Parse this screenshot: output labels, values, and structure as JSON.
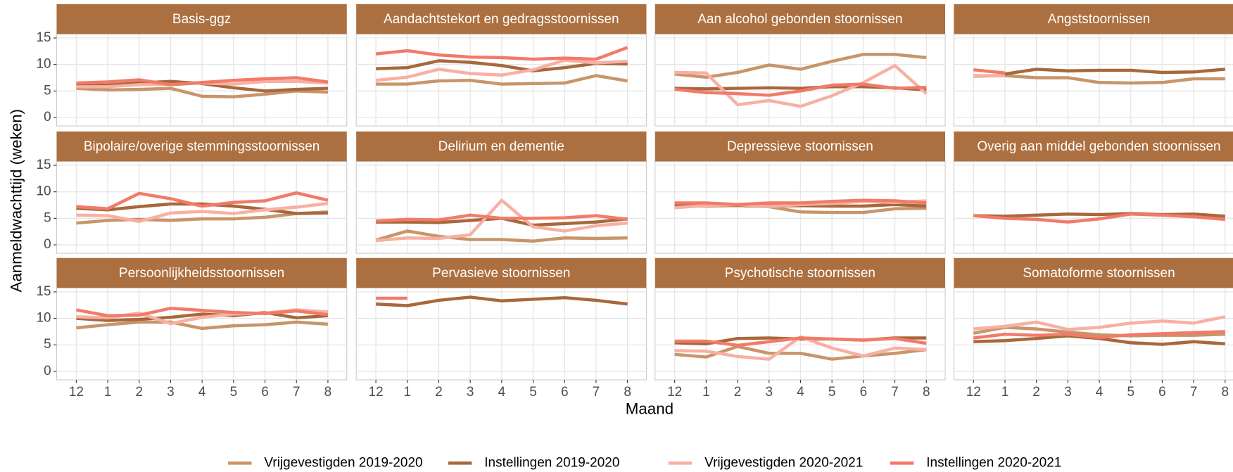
{
  "chart_data": {
    "type": "line",
    "y_label": "Aanmeldwachttijd (weken)",
    "x_label": "Maand",
    "categories": [
      "12",
      "1",
      "2",
      "3",
      "4",
      "5",
      "6",
      "7",
      "8"
    ],
    "ylim": [
      -1.6,
      15.75
    ],
    "yticks": [
      0,
      5,
      10,
      15
    ],
    "grid": true,
    "legend": "bottom",
    "series": [
      {
        "name": "Vrijgevestigden 2019-2020",
        "color": "#c8956a"
      },
      {
        "name": "Instellingen 2019-2020",
        "color": "#a7683c"
      },
      {
        "name": "Vrijgevestigden 2020-2021",
        "color": "#f8b0a3"
      },
      {
        "name": "Instellingen 2020-2021",
        "color": "#f27a69"
      }
    ],
    "panels": [
      {
        "title": "Basis-ggz",
        "series": [
          {
            "values": [
              5.5,
              5.2,
              5.3,
              5.5,
              4,
              3.9,
              4.4,
              5,
              4.8
            ]
          },
          {
            "values": [
              6,
              6.1,
              6.5,
              6.8,
              6.4,
              5.6,
              5,
              5.3,
              5.5
            ]
          },
          {
            "values": [
              5.8,
              5.8,
              6.2,
              6.2,
              6.5,
              6.3,
              6.8,
              6.8,
              6.5
            ]
          },
          {
            "values": [
              6.5,
              6.7,
              7.1,
              6.2,
              6.6,
              7,
              7.3,
              7.5,
              6.7
            ]
          }
        ]
      },
      {
        "title": "Aandachtstekort en gedragsstoornissen",
        "series": [
          {
            "values": [
              6.3,
              6.3,
              6.9,
              7,
              6.3,
              6.4,
              6.5,
              7.9,
              6.9
            ]
          },
          {
            "values": [
              9.2,
              9.4,
              10.7,
              10.4,
              9.8,
              8.8,
              9.4,
              10.2,
              10.1
            ]
          },
          {
            "values": [
              7,
              7.6,
              9.1,
              8.3,
              8,
              9,
              10.8,
              10.3,
              10.6
            ]
          },
          {
            "values": [
              12,
              12.6,
              11.8,
              11.4,
              11.3,
              11,
              11.2,
              11,
              13.2
            ]
          }
        ]
      },
      {
        "title": "Aan alcohol gebonden stoornissen",
        "series": [
          {
            "values": [
              8.2,
              7.6,
              8.5,
              9.9,
              9.1,
              10.6,
              11.9,
              11.9,
              11.3
            ]
          },
          {
            "values": [
              5.5,
              5.4,
              5.5,
              5.6,
              5.5,
              5.8,
              5.8,
              5.6,
              5.2
            ]
          },
          {
            "values": [
              8.5,
              8.4,
              2.4,
              3.2,
              2.1,
              4.1,
              6.6,
              9.8,
              4.5
            ]
          },
          {
            "values": [
              5.3,
              4.7,
              4.5,
              4.2,
              5,
              6.1,
              6.3,
              5.5,
              5.7
            ]
          }
        ]
      },
      {
        "title": "Angststoornissen",
        "series": [
          {
            "values": [
              7.8,
              7.9,
              7.5,
              7.5,
              6.6,
              6.5,
              6.6,
              7.3,
              7.3
            ]
          },
          {
            "values": [
              null,
              8.2,
              9.1,
              8.8,
              8.9,
              8.9,
              8.5,
              8.6,
              9.1
            ]
          },
          {
            "values": [
              7.9,
              7.9,
              null,
              null,
              null,
              null,
              null,
              null,
              null
            ]
          },
          {
            "values": [
              9,
              8.4,
              null,
              null,
              null,
              null,
              null,
              null,
              null
            ]
          }
        ]
      },
      {
        "title": "Bipolaire/overige stemmingsstoornissen",
        "series": [
          {
            "values": [
              4.1,
              4.6,
              4.8,
              4.6,
              4.9,
              4.9,
              5.2,
              5.9,
              6.2
            ]
          },
          {
            "values": [
              6.9,
              6.6,
              7.2,
              7.7,
              7.7,
              7.3,
              6.7,
              5.9,
              6
            ]
          },
          {
            "values": [
              5.6,
              5.5,
              4.4,
              6,
              6.3,
              5.9,
              6.6,
              7.1,
              7.8
            ]
          },
          {
            "values": [
              7.2,
              6.8,
              9.7,
              8.7,
              7.3,
              8,
              8.3,
              9.8,
              8.4
            ]
          }
        ]
      },
      {
        "title": "Delirium en dementie",
        "series": [
          {
            "values": [
              0.9,
              2.6,
              1.6,
              1,
              1,
              0.7,
              1.3,
              1.2,
              1.3
            ]
          },
          {
            "values": [
              4.3,
              4.3,
              4.2,
              4.6,
              5,
              3.7,
              4,
              4.3,
              4.9
            ]
          },
          {
            "values": [
              0.8,
              1.3,
              1.2,
              1.9,
              8.4,
              3.4,
              2.6,
              3.6,
              4.1
            ]
          },
          {
            "values": [
              4.5,
              4.8,
              4.7,
              5.6,
              5,
              5,
              5.1,
              5.5,
              4.8
            ]
          }
        ]
      },
      {
        "title": "Depressieve stoornissen",
        "series": [
          {
            "values": [
              7.3,
              7.3,
              7.4,
              7.2,
              6.2,
              6.1,
              6.1,
              6.8,
              6.9
            ]
          },
          {
            "values": [
              7.4,
              7.5,
              7.5,
              7.3,
              7.4,
              7.3,
              7.3,
              7.6,
              7.3
            ]
          },
          {
            "values": [
              7,
              7.4,
              7.6,
              7.2,
              7.6,
              7.8,
              8.2,
              8,
              8.3
            ]
          },
          {
            "values": [
              7.9,
              7.9,
              7.6,
              7.9,
              7.9,
              8.2,
              8.4,
              8.3,
              7.9
            ]
          }
        ]
      },
      {
        "title": "Overig aan middel gebonden stoornissen",
        "series": [
          {
            "values": [
              null,
              null,
              null,
              null,
              null,
              null,
              null,
              null,
              null
            ]
          },
          {
            "values": [
              5.5,
              5.4,
              5.6,
              5.8,
              5.7,
              5.9,
              5.7,
              5.8,
              5.4
            ]
          },
          {
            "values": [
              null,
              null,
              null,
              null,
              null,
              null,
              null,
              null,
              null
            ]
          },
          {
            "values": [
              5.5,
              5,
              4.8,
              4.3,
              4.9,
              5.8,
              5.6,
              5.3,
              4.8
            ]
          }
        ]
      },
      {
        "title": "Persoonlijkheidsstoornissen",
        "series": [
          {
            "values": [
              8.2,
              8.8,
              9.3,
              9.3,
              8.1,
              8.6,
              8.8,
              9.3,
              8.9
            ]
          },
          {
            "values": [
              10,
              9.6,
              9.8,
              10.2,
              10.8,
              10.5,
              11.1,
              10.1,
              10.5
            ]
          },
          {
            "values": [
              10.3,
              10.1,
              11,
              9,
              10.2,
              10.8,
              11,
              11.6,
              11.2
            ]
          },
          {
            "values": [
              11.6,
              10.5,
              10.6,
              11.9,
              11.5,
              11.1,
              10.9,
              11.4,
              10.7
            ]
          }
        ]
      },
      {
        "title": "Pervasieve stoornissen",
        "series": [
          {
            "values": [
              null,
              null,
              null,
              null,
              null,
              null,
              null,
              null,
              null
            ]
          },
          {
            "values": [
              12.7,
              12.4,
              13.4,
              14,
              13.3,
              13.6,
              13.9,
              13.4,
              12.7
            ]
          },
          {
            "values": [
              null,
              null,
              null,
              null,
              null,
              null,
              null,
              null,
              null
            ]
          },
          {
            "values": [
              13.8,
              13.8,
              null,
              null,
              null,
              null,
              null,
              null,
              null
            ]
          }
        ]
      },
      {
        "title": "Psychotische stoornissen",
        "series": [
          {
            "values": [
              3.2,
              2.7,
              4.7,
              3.4,
              3.4,
              2.3,
              2.9,
              3.4,
              4.1
            ]
          },
          {
            "values": [
              5.4,
              5.2,
              6.2,
              6.3,
              6.1,
              6.1,
              5.9,
              6.3,
              6.3
            ]
          },
          {
            "values": [
              3.9,
              3.8,
              2.8,
              2.3,
              6.5,
              4.4,
              2.9,
              4.4,
              4.1
            ]
          },
          {
            "values": [
              5.7,
              5.7,
              4.9,
              5.6,
              6.3,
              6.1,
              5.9,
              6.2,
              5.3
            ]
          }
        ]
      },
      {
        "title": "Somatoforme stoornissen",
        "series": [
          {
            "values": [
              7.2,
              8.3,
              8,
              7.4,
              6.9,
              6.7,
              6.8,
              6.8,
              7
            ]
          },
          {
            "values": [
              5.6,
              5.8,
              6.2,
              6.7,
              6.2,
              5.4,
              5.1,
              5.6,
              5.2
            ]
          },
          {
            "values": [
              8,
              8.5,
              9.3,
              7.9,
              8.3,
              9.1,
              9.5,
              9.1,
              10.3
            ]
          },
          {
            "values": [
              6.3,
              7,
              6.8,
              7,
              6.4,
              6.9,
              7.1,
              7.3,
              7.5
            ]
          }
        ]
      }
    ]
  }
}
